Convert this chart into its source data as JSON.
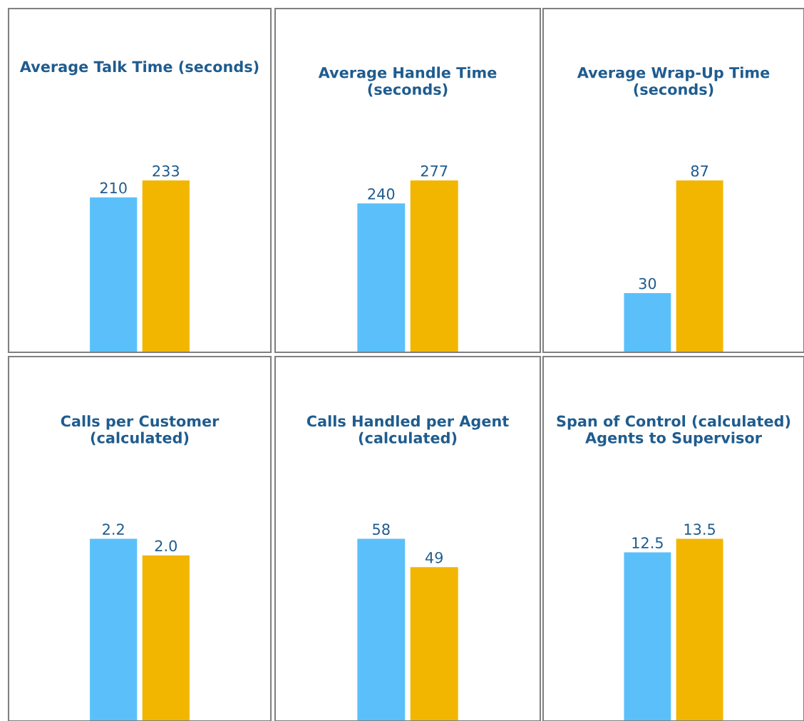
{
  "chart_data": [
    {
      "type": "bar",
      "title": "Average Talk Time (seconds)",
      "categories": [
        null
      ],
      "series": [
        {
          "color": "#5bc0fa",
          "values": [
            210
          ]
        },
        {
          "color": "#f2b600",
          "values": [
            233
          ]
        }
      ],
      "data_labels": true,
      "tick_labels": false
    },
    {
      "type": "bar",
      "title": "Average Handle Time\n(seconds)",
      "categories": [
        null
      ],
      "series": [
        {
          "color": "#5bc0fa",
          "values": [
            240
          ]
        },
        {
          "color": "#f2b600",
          "values": [
            277
          ]
        }
      ],
      "data_labels": true,
      "tick_labels": false
    },
    {
      "type": "bar",
      "title": "Average Wrap-Up Time\n(seconds)",
      "categories": [
        null
      ],
      "series": [
        {
          "color": "#5bc0fa",
          "values": [
            30
          ]
        },
        {
          "color": "#f2b600",
          "values": [
            87
          ]
        }
      ],
      "data_labels": true,
      "tick_labels": false
    },
    {
      "type": "bar",
      "title": "Calls per Customer\n(calculated)",
      "categories": [
        null
      ],
      "series": [
        {
          "color": "#5bc0fa",
          "values": [
            2.2
          ],
          "value_labels": [
            "2.2"
          ]
        },
        {
          "color": "#f2b600",
          "values": [
            2.0
          ],
          "value_labels": [
            "2.0"
          ]
        }
      ],
      "tick_labels": false
    },
    {
      "type": "bar",
      "title": "Calls Handled per Agent\n(calculated)",
      "categories": [
        null
      ],
      "series": [
        {
          "color": "#5bc0fa",
          "values": [
            58
          ]
        },
        {
          "color": "#f2b600",
          "values": [
            49
          ]
        }
      ],
      "data_labels": true,
      "tick_labels": false
    },
    {
      "type": "bar",
      "title": "Span of Control (calculated)\nAgents to Supervisor",
      "categories": [
        null
      ],
      "series": [
        {
          "color": "#5bc0fa",
          "values": [
            12.5
          ]
        },
        {
          "color": "#f2b600",
          "values": [
            13.5
          ]
        }
      ],
      "data_labels": true,
      "tick_labels": false
    }
  ]
}
